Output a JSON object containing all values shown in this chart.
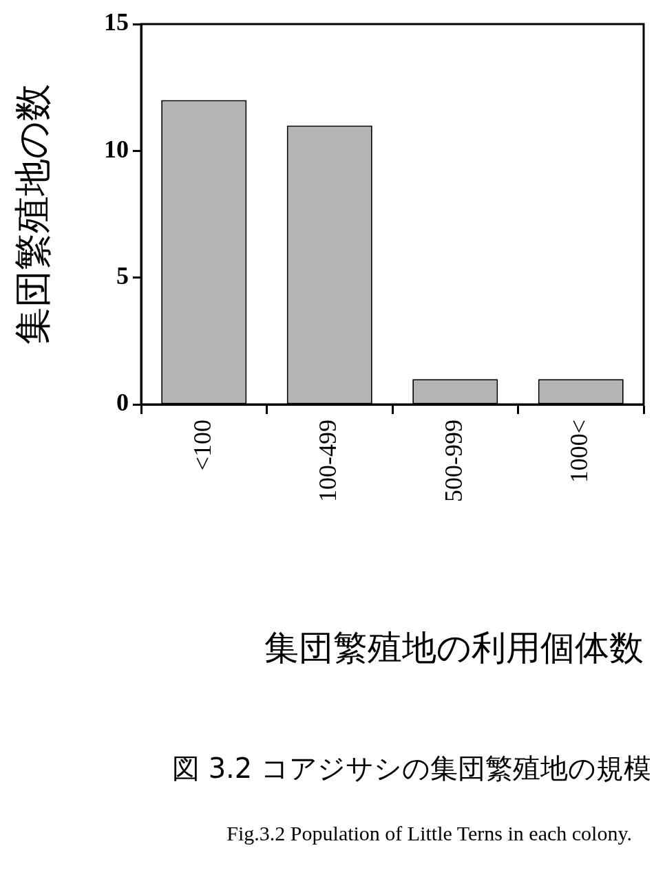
{
  "chart_data": {
    "type": "bar",
    "title": "図 3.2 コアジサシの集団繁殖地の規模",
    "xlabel": "集団繁殖地の利用個体数",
    "ylabel": "集団繁殖地の数",
    "categories": [
      "<100",
      "100-499",
      "500-999",
      "1000<"
    ],
    "values": [
      12,
      11,
      1,
      1
    ],
    "color": "#b4b4b4",
    "ylim": [
      0,
      15
    ],
    "yticks": [
      0,
      5,
      10,
      15
    ],
    "grid": false,
    "legend": false,
    "annotations": [
      "Fig.3.2 Population of Little Terns in each colony."
    ]
  }
}
